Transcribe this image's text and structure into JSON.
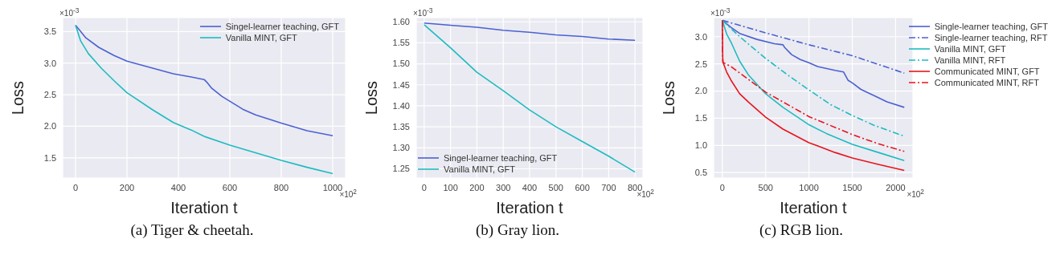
{
  "chart_data": [
    {
      "type": "line",
      "title": "(a) Tiger & cheetah.",
      "xlabel": "Iteration t",
      "ylabel": "Loss",
      "annotations": [
        "×10$^{-3}$",
        "×10$^{2}$"
      ],
      "xlim": [
        -50,
        1050
      ],
      "xticks": [
        0,
        200,
        400,
        600,
        800,
        1000
      ],
      "ylim": [
        1.18,
        3.72
      ],
      "yticks": [
        1.5,
        {
          "value": 2,
          "label": "2.0"
        },
        2.5,
        {
          "value": 3,
          "label": "3.0"
        },
        3.5
      ],
      "grid": true,
      "legend": "top right",
      "series": [
        {
          "name": "Singel-learner teaching, GFT",
          "color": "#4b61d1",
          "line_style": "solid",
          "x": [
            0,
            20,
            40,
            90,
            150,
            200,
            300,
            380,
            450,
            500,
            510,
            530,
            570,
            650,
            700,
            800,
            900,
            1000
          ],
          "values": [
            3.6,
            3.5,
            3.4,
            3.25,
            3.12,
            3.03,
            2.92,
            2.83,
            2.78,
            2.74,
            2.7,
            2.6,
            2.47,
            2.27,
            2.18,
            2.05,
            1.93,
            1.85
          ]
        },
        {
          "name": "Vanilla MINT, GFT",
          "color": "#1cbcc0",
          "line_style": "solid",
          "x": [
            0,
            20,
            50,
            100,
            150,
            200,
            300,
            380,
            450,
            500,
            600,
            700,
            800,
            900,
            1000
          ],
          "values": [
            3.6,
            3.35,
            3.15,
            2.92,
            2.72,
            2.53,
            2.26,
            2.06,
            1.94,
            1.84,
            1.7,
            1.58,
            1.46,
            1.35,
            1.25
          ]
        }
      ]
    },
    {
      "type": "line",
      "title": "(b) Gray lion.",
      "xlabel": "Iteration t",
      "ylabel": "Loss",
      "annotations": [
        "×10$^{-3}$",
        "×10$^{2}$"
      ],
      "xlim": [
        -30,
        830
      ],
      "xticks": [
        0,
        100,
        200,
        300,
        400,
        500,
        600,
        700,
        800
      ],
      "ylim": [
        1.228,
        1.61
      ],
      "yticks": [
        {
          "value": 1.25,
          "label": "1.25"
        },
        {
          "value": 1.3,
          "label": "1.30"
        },
        {
          "value": 1.35,
          "label": "1.35"
        },
        {
          "value": 1.4,
          "label": "1.40"
        },
        {
          "value": 1.45,
          "label": "1.45"
        },
        {
          "value": 1.5,
          "label": "1.50"
        },
        {
          "value": 1.55,
          "label": "1.55"
        },
        {
          "value": 1.6,
          "label": "1.60"
        }
      ],
      "grid": true,
      "legend": "bottom left",
      "series": [
        {
          "name": "Singel-learner teaching, GFT",
          "color": "#4b61d1",
          "line_style": "solid",
          "x": [
            0,
            100,
            200,
            300,
            400,
            500,
            600,
            700,
            800
          ],
          "values": [
            1.597,
            1.592,
            1.587,
            1.58,
            1.575,
            1.569,
            1.565,
            1.559,
            1.556
          ]
        },
        {
          "name": "Vanilla MINT, GFT",
          "color": "#1cbcc0",
          "line_style": "solid",
          "x": [
            0,
            100,
            200,
            300,
            400,
            500,
            600,
            700,
            800
          ],
          "values": [
            1.593,
            1.538,
            1.48,
            1.436,
            1.39,
            1.35,
            1.315,
            1.28,
            1.242
          ]
        }
      ]
    },
    {
      "type": "line",
      "title": "(c) RGB lion.",
      "xlabel": "Iteration t",
      "ylabel": "Loss",
      "annotations": [
        "×10$^{-3}$",
        "×10$^{2}$"
      ],
      "xlim": [
        -100,
        2200
      ],
      "xticks": [
        0,
        500,
        1000,
        1500,
        2000
      ],
      "ylim": [
        0.4,
        3.35
      ],
      "yticks": [
        0.5,
        {
          "value": 1,
          "label": "1.0"
        },
        1.5,
        {
          "value": 2,
          "label": "2.0"
        },
        2.5,
        {
          "value": 3,
          "label": "3.0"
        }
      ],
      "grid": true,
      "legend": "right",
      "series": [
        {
          "name": "Single-learner teaching, GFT",
          "color": "#4b61d1",
          "line_style": "solid",
          "x": [
            0,
            100,
            200,
            400,
            600,
            700,
            720,
            800,
            900,
            1000,
            1100,
            1300,
            1400,
            1450,
            1500,
            1600,
            1800,
            1900,
            2100
          ],
          "values": [
            3.3,
            3.17,
            3.06,
            2.95,
            2.87,
            2.85,
            2.8,
            2.67,
            2.58,
            2.52,
            2.45,
            2.38,
            2.35,
            2.2,
            2.15,
            2.03,
            1.88,
            1.8,
            1.7
          ]
        },
        {
          "name": "Single-learner teaching, RFT",
          "color": "#4b61d1",
          "line_style": "dashdot",
          "x": [
            0,
            500,
            1000,
            1500,
            2100
          ],
          "values": [
            3.3,
            3.07,
            2.85,
            2.65,
            2.33
          ]
        },
        {
          "name": "Vanilla MINT, GFT",
          "color": "#1cbcc0",
          "line_style": "solid",
          "x": [
            0,
            50,
            100,
            200,
            300,
            500,
            700,
            1000,
            1200,
            1500,
            1800,
            2100
          ],
          "values": [
            3.3,
            3.05,
            2.9,
            2.55,
            2.3,
            1.95,
            1.7,
            1.38,
            1.22,
            1.02,
            0.87,
            0.72
          ]
        },
        {
          "name": "Vanilla MINT, RFT",
          "color": "#1cbcc0",
          "line_style": "dashdot",
          "x": [
            0,
            200,
            500,
            750,
            1000,
            1250,
            1500,
            1750,
            2100
          ],
          "values": [
            3.3,
            3.0,
            2.6,
            2.3,
            2.02,
            1.75,
            1.55,
            1.37,
            1.17
          ]
        },
        {
          "name": "Communicated MINT, GFT",
          "color": "#e8141c",
          "line_style": "solid",
          "x": [
            0,
            5,
            10,
            50,
            100,
            200,
            300,
            500,
            700,
            1000,
            1300,
            1500,
            1800,
            2100
          ],
          "values": [
            3.3,
            2.6,
            2.52,
            2.35,
            2.2,
            1.95,
            1.8,
            1.52,
            1.3,
            1.05,
            0.87,
            0.77,
            0.65,
            0.54
          ]
        },
        {
          "name": "Communicated MINT, RFT",
          "color": "#e8141c",
          "line_style": "dashdot",
          "x": [
            0,
            5,
            100,
            500,
            1000,
            1500,
            1800,
            2100
          ],
          "values": [
            3.3,
            2.53,
            2.45,
            1.98,
            1.53,
            1.2,
            1.03,
            0.89
          ]
        }
      ]
    }
  ]
}
